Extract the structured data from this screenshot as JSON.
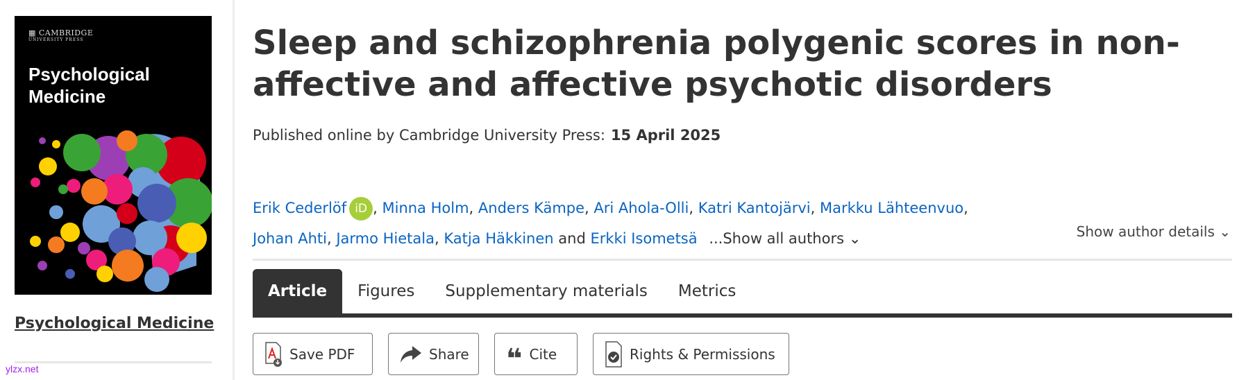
{
  "sidebar": {
    "cover": {
      "publisher_logo": "CAMBRIDGE UNIVERSITY PRESS",
      "publisher": "CAMBRIDGE",
      "publisher_sub": "UNIVERSITY PRESS",
      "title_line1": "Psychological",
      "title_line2": "Medicine"
    },
    "journal_link": "Psychological Medicine",
    "watermark": "ylzx.net"
  },
  "article": {
    "title": "Sleep and schizophrenia polygenic scores in non-affective and affective psychotic disorders",
    "published_label": "Published online by Cambridge University Press:",
    "published_date": "15 April 2025",
    "authors": [
      "Erik Cederlöf",
      "Minna Holm",
      "Anders Kämpe",
      "Ari Ahola-Olli",
      "Katri Kantojärvi",
      "Markku Lähteenvuo",
      "Johan Ahti",
      "Jarmo Hietala",
      "Katja Häkkinen",
      "Erkki Isometsä"
    ],
    "and_label": "and",
    "orcid_label": "iD",
    "show_all_authors": "...Show all authors",
    "show_author_details": "Show author details"
  },
  "tabs": [
    {
      "label": "Article",
      "active": true
    },
    {
      "label": "Figures"
    },
    {
      "label": "Supplementary materials"
    },
    {
      "label": "Metrics"
    }
  ],
  "actions": {
    "save_pdf": "Save PDF",
    "share": "Share",
    "cite": "Cite",
    "rights": "Rights & Permissions"
  },
  "colors": {
    "link": "#0a64c2",
    "orcid": "#a6ce39",
    "tab_active": "#333333",
    "pdf_red": "#e2231a"
  }
}
